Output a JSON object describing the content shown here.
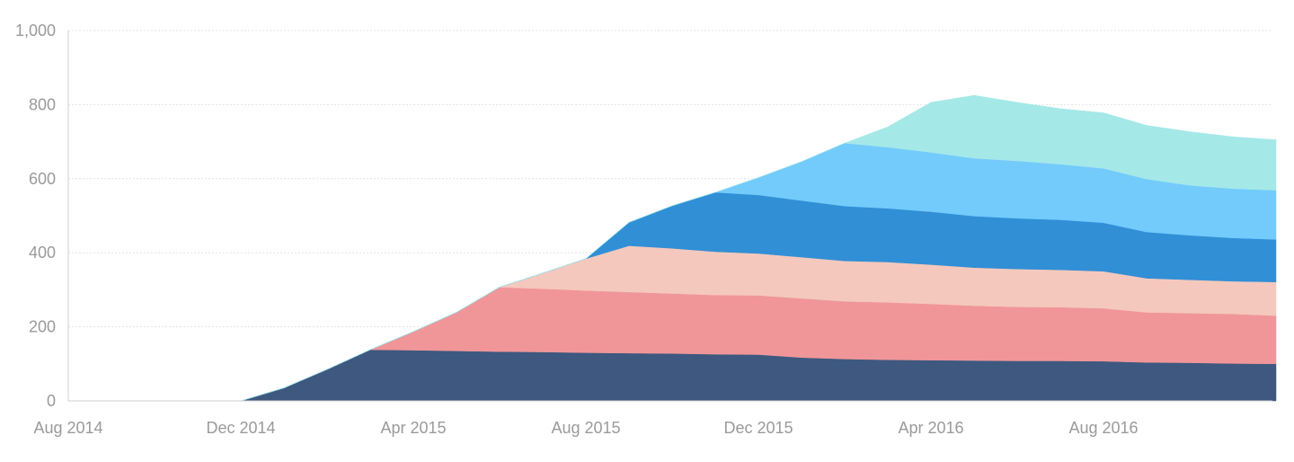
{
  "chart_data": {
    "type": "area",
    "stacked": true,
    "title": "",
    "xlabel": "",
    "ylabel": "",
    "ylim": [
      0,
      1000
    ],
    "y_ticks": [
      "0",
      "200",
      "400",
      "600",
      "800",
      "1,000"
    ],
    "y_tick_values": [
      0,
      200,
      400,
      600,
      800,
      1000
    ],
    "x_ticks": [
      "Aug 2014",
      "Dec 2014",
      "Apr 2015",
      "Aug 2015",
      "Dec 2015",
      "Apr 2016",
      "Aug 2016"
    ],
    "x_tick_dates": [
      "2014-08",
      "2014-12",
      "2015-04",
      "2015-08",
      "2015-12",
      "2016-04",
      "2016-08"
    ],
    "grid": true,
    "legend": "none",
    "x": [
      "2014-08",
      "2014-09",
      "2014-10",
      "2014-11",
      "2014-12",
      "2015-01",
      "2015-02",
      "2015-03",
      "2015-04",
      "2015-05",
      "2015-06",
      "2015-07",
      "2015-08",
      "2015-09",
      "2015-10",
      "2015-11",
      "2015-12",
      "2016-01",
      "2016-02",
      "2016-03",
      "2016-04",
      "2016-05",
      "2016-06",
      "2016-07",
      "2016-08",
      "2016-09",
      "2016-10",
      "2016-11",
      "2016-12"
    ],
    "series": [
      {
        "color": "#3e587f",
        "values": [
          0,
          0,
          0,
          0,
          0,
          35,
          85,
          138,
          137,
          135,
          133,
          132,
          130,
          129,
          128,
          126,
          125,
          117,
          113,
          111,
          110,
          109,
          108,
          108,
          107,
          104,
          103,
          101,
          100
        ]
      },
      {
        "color": "#f09699",
        "values": [
          0,
          0,
          0,
          0,
          0,
          0,
          0,
          0,
          50,
          104,
          174,
          171,
          168,
          165,
          162,
          160,
          160,
          160,
          156,
          155,
          152,
          148,
          146,
          145,
          143,
          135,
          134,
          134,
          130
        ]
      },
      {
        "color": "#f4c8bd",
        "values": [
          0,
          0,
          0,
          0,
          0,
          0,
          0,
          0,
          0,
          0,
          0,
          42,
          86,
          125,
          122,
          117,
          113,
          111,
          109,
          109,
          106,
          103,
          102,
          101,
          100,
          92,
          90,
          88,
          91
        ]
      },
      {
        "color": "#318fd6",
        "values": [
          0,
          0,
          0,
          0,
          0,
          0,
          0,
          0,
          0,
          0,
          0,
          0,
          0,
          63,
          115,
          160,
          158,
          153,
          148,
          145,
          143,
          139,
          137,
          135,
          131,
          125,
          120,
          117,
          115
        ]
      },
      {
        "color": "#72cbfb",
        "values": [
          0,
          0,
          0,
          0,
          0,
          0,
          0,
          0,
          0,
          0,
          0,
          0,
          0,
          0,
          0,
          0,
          47,
          105,
          170,
          165,
          160,
          156,
          155,
          150,
          147,
          143,
          135,
          133,
          133
        ]
      },
      {
        "color": "#a5e8e8",
        "values": [
          0,
          0,
          0,
          0,
          0,
          0,
          0,
          0,
          0,
          0,
          0,
          0,
          0,
          0,
          0,
          0,
          0,
          0,
          0,
          55,
          135,
          170,
          158,
          150,
          150,
          145,
          145,
          140,
          136
        ]
      }
    ]
  }
}
